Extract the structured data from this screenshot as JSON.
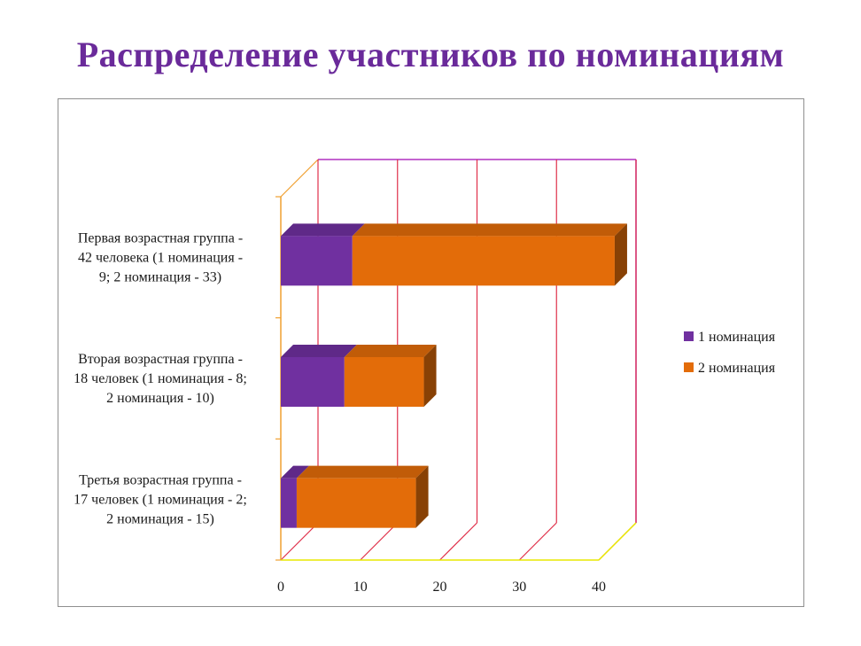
{
  "title": "Распределение участников  по номинациям",
  "colors": {
    "series1": "#7030a0",
    "series2": "#e36c09",
    "gridline": "#e0304a",
    "back_wall_top": "#b030c0",
    "floor": "#e8e800",
    "axis": "#f0a030",
    "frame": "#8f8f8f"
  },
  "chart_data": {
    "type": "bar",
    "orientation": "horizontal",
    "stacked": true,
    "three_d": true,
    "categories": [
      "Первая возрастная группа - 42 человека (1 номинация - 9;   2 номинация - 33)",
      "Вторая возрастная группа - 18 человек (1 номинация - 8; 2 номинация - 10)",
      "Третья возрастная группа - 17 человек (1 номинация - 2; 2 номинация - 15)"
    ],
    "category_lines": [
      [
        "Первая возрастная группа -",
        "42 человека (1 номинация -",
        "9;   2 номинация - 33)"
      ],
      [
        "Вторая возрастная группа -",
        "18 человек (1 номинация - 8;",
        "2 номинация - 10)"
      ],
      [
        "Третья возрастная группа -",
        "17 человек (1 номинация - 2;",
        "2 номинация - 15)"
      ]
    ],
    "series": [
      {
        "name": "1 номинация",
        "values": [
          9,
          8,
          2
        ]
      },
      {
        "name": "2 номинация",
        "values": [
          33,
          10,
          15
        ]
      }
    ],
    "x_ticks": [
      "0",
      "10",
      "20",
      "30",
      "40"
    ],
    "xlim": [
      0,
      40
    ],
    "grid": true,
    "legend_position": "right"
  }
}
